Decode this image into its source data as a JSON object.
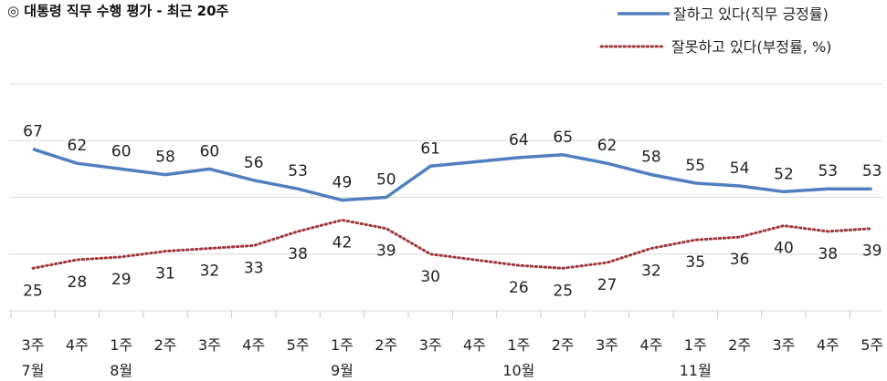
{
  "title": "◎  대통령 직무 수행 평가 - 최근 20주",
  "chart_data": {
    "type": "line",
    "title": "◎  대통령 직무 수행 평가 - 최근 20주",
    "categories": [
      "3주",
      "4주",
      "1주",
      "2주",
      "3주",
      "4주",
      "5주",
      "1주",
      "2주",
      "3주",
      "4주",
      "1주",
      "2주",
      "3주",
      "4주",
      "1주",
      "2주",
      "3주",
      "4주",
      "5주"
    ],
    "months": [
      {
        "label": "7월",
        "index": 0
      },
      {
        "label": "8월",
        "index": 2
      },
      {
        "label": "9월",
        "index": 7
      },
      {
        "label": "10월",
        "index": 11
      },
      {
        "label": "11월",
        "index": 15
      }
    ],
    "series": [
      {
        "name": "잘하고 있다(직무 긍정률)",
        "color": "#4f7fbf",
        "style": "solid",
        "values": [
          67,
          62,
          60,
          58,
          60,
          56,
          53,
          49,
          50,
          61,
          null,
          64,
          65,
          62,
          58,
          55,
          54,
          52,
          53,
          53
        ]
      },
      {
        "name": "잘못하고 있다(부정률, %)",
        "color": "#a0373a",
        "style": "dotted",
        "values": [
          25,
          28,
          29,
          31,
          32,
          33,
          38,
          42,
          39,
          30,
          null,
          26,
          25,
          27,
          32,
          35,
          36,
          40,
          38,
          39
        ]
      }
    ],
    "ylim": [
      10,
      90
    ],
    "grid": true,
    "legend_position": "top-right",
    "xlabel": "",
    "ylabel": ""
  }
}
